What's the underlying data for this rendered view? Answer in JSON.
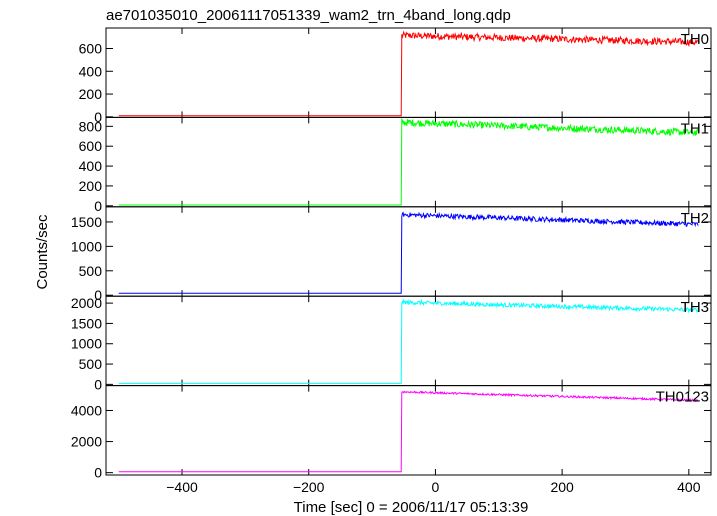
{
  "chart_data": {
    "type": "line",
    "title": "ae701035010_20061117051339_wam2_trn_4band_long.qdp",
    "xlabel": "Time [sec] 0 = 2006/11/17 05:13:39",
    "ylabel": "Counts/sec",
    "xlim": [
      -520,
      435
    ],
    "xticks": [
      -400,
      -200,
      0,
      200,
      400
    ],
    "step_time": -53,
    "data_end_time": 415,
    "grid": false,
    "legend": "none",
    "panels": [
      {
        "name": "TH0",
        "color": "#ff0000",
        "ylim": [
          -5,
          780
        ],
        "yticks": [
          0,
          200,
          400,
          600
        ],
        "pre_level": 10,
        "post_start": 715,
        "post_end": 655,
        "noise": 30
      },
      {
        "name": "TH1",
        "color": "#00ff00",
        "ylim": [
          -10,
          890
        ],
        "yticks": [
          0,
          200,
          400,
          600,
          800
        ],
        "pre_level": 8,
        "post_start": 840,
        "post_end": 735,
        "noise": 35
      },
      {
        "name": "TH2",
        "color": "#0000ff",
        "ylim": [
          -20,
          1810
        ],
        "yticks": [
          0,
          500,
          1000,
          1500
        ],
        "pre_level": 40,
        "post_start": 1650,
        "post_end": 1450,
        "noise": 50
      },
      {
        "name": "TH3",
        "color": "#00ffff",
        "ylim": [
          -30,
          2170
        ],
        "yticks": [
          0,
          500,
          1000,
          1500,
          2000
        ],
        "pre_level": 25,
        "post_start": 2020,
        "post_end": 1830,
        "noise": 50
      },
      {
        "name": "TH0123",
        "color": "#ff00ff",
        "ylim": [
          -150,
          5600
        ],
        "yticks": [
          0,
          2000,
          4000
        ],
        "pre_level": 60,
        "post_start": 5200,
        "post_end": 4650,
        "noise": 60
      }
    ]
  }
}
